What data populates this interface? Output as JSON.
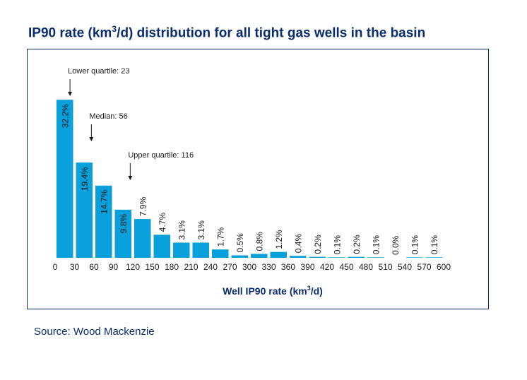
{
  "title_text": "IP90 rate (km",
  "title_sup": "3",
  "title_rest": "/d) distribution for all tight gas wells in the basin",
  "source": "Source: Wood Mackenzie",
  "colors": {
    "bar": "#0aa0dc",
    "frame": "#0a2d6e",
    "text": "#0a2d6e"
  },
  "chart_data": {
    "type": "bar",
    "title": "IP90 rate (km3/d) distribution for all tight gas wells in the basin",
    "xlabel_text": "Well IP90 rate (km",
    "xlabel_sup": "3",
    "xlabel_rest": "/d)",
    "ylabel": "",
    "x_ticks": [
      "0",
      "30",
      "60",
      "90",
      "120",
      "150",
      "180",
      "210",
      "240",
      "270",
      "300",
      "330",
      "360",
      "390",
      "420",
      "450",
      "480",
      "510",
      "540",
      "570",
      "600"
    ],
    "bin_width": 30,
    "values": [
      32.2,
      19.4,
      14.7,
      9.8,
      7.9,
      4.7,
      3.1,
      3.1,
      1.7,
      0.5,
      0.8,
      1.2,
      0.4,
      0.2,
      0.1,
      0.2,
      0.1,
      0.0,
      0.1,
      0.1
    ],
    "labels": [
      "32.2%",
      "19.4%",
      "14.7%",
      "9.8%",
      "7.9%",
      "4.7%",
      "3.1%",
      "3.1%",
      "1.7%",
      "0.5%",
      "0.8%",
      "1.2%",
      "0.4%",
      "0.2%",
      "0.1%",
      "0.2%",
      "0.1%",
      "0.0%",
      "0.1%",
      "0.1%"
    ],
    "ylim": [
      0,
      33
    ],
    "annotations": [
      {
        "text": "Lower quartile: 23",
        "x": 23
      },
      {
        "text": "Median: 56",
        "x": 56
      },
      {
        "text": "Upper quartile: 116",
        "x": 116
      }
    ]
  }
}
